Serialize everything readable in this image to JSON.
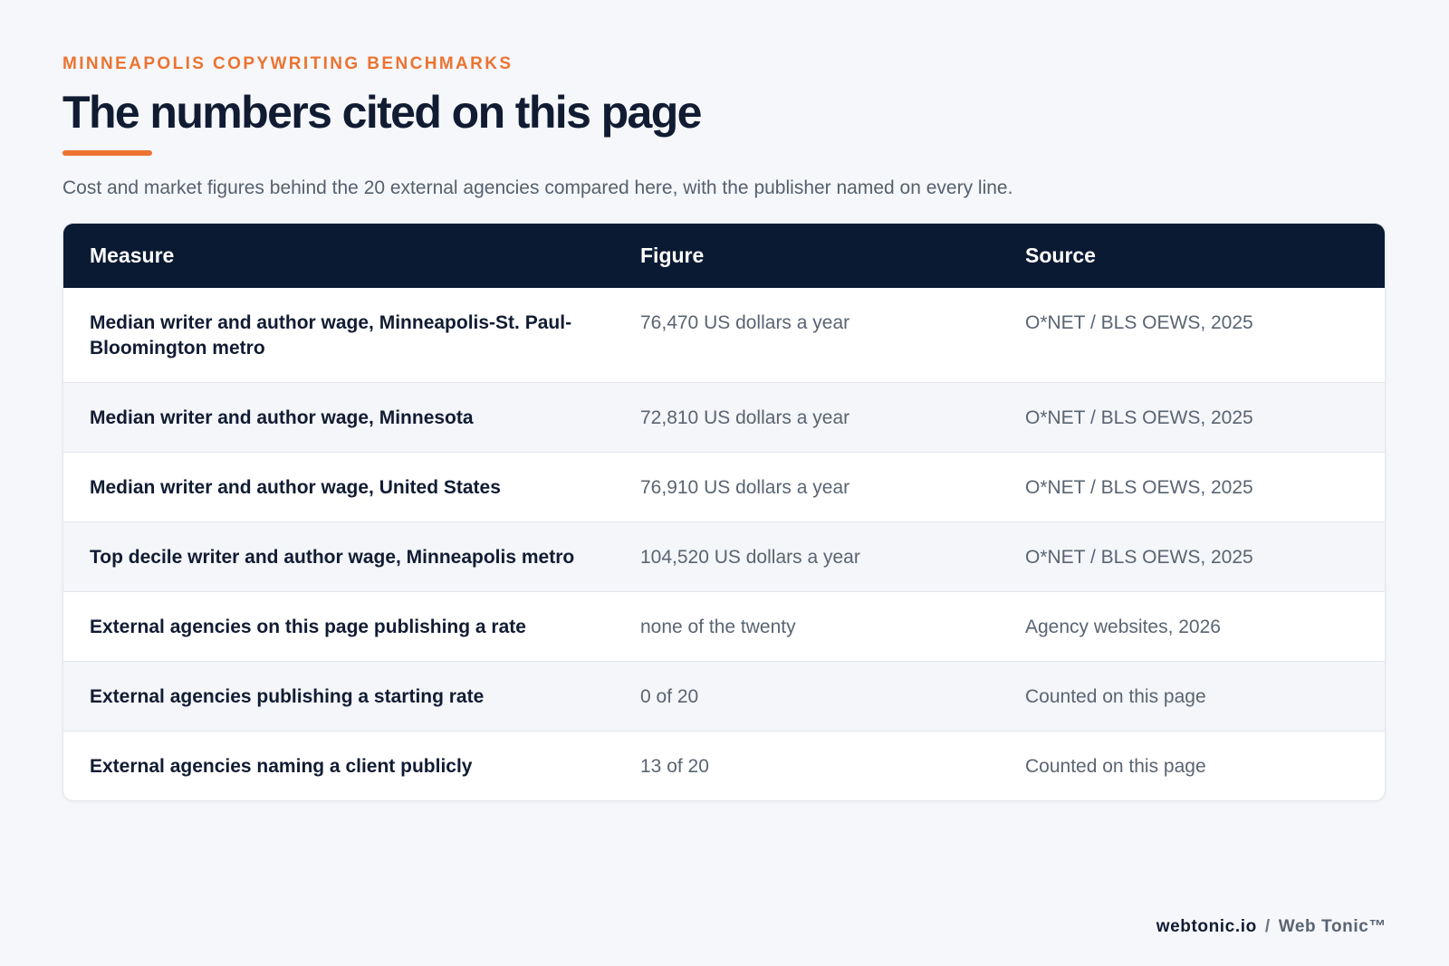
{
  "header": {
    "eyebrow": "MINNEAPOLIS COPYWRITING BENCHMARKS",
    "title": "The numbers cited on this page",
    "subtitle": "Cost and market figures behind the 20 external agencies compared here, with the publisher named on every line."
  },
  "table": {
    "columns": [
      "Measure",
      "Figure",
      "Source"
    ],
    "rows": [
      {
        "measure": "Median writer and author wage, Minneapolis-St. Paul-Bloomington metro",
        "figure": "76,470 US dollars a year",
        "source": "O*NET / BLS OEWS, 2025"
      },
      {
        "measure": "Median writer and author wage, Minnesota",
        "figure": "72,810 US dollars a year",
        "source": "O*NET / BLS OEWS, 2025"
      },
      {
        "measure": "Median writer and author wage, United States",
        "figure": "76,910 US dollars a year",
        "source": "O*NET / BLS OEWS, 2025"
      },
      {
        "measure": "Top decile writer and author wage, Minneapolis metro",
        "figure": "104,520 US dollars a year",
        "source": "O*NET / BLS OEWS, 2025"
      },
      {
        "measure": "External agencies on this page publishing a rate",
        "figure": "none of the twenty",
        "source": "Agency websites, 2026"
      },
      {
        "measure": "External agencies publishing a starting rate",
        "figure": "0 of 20",
        "source": "Counted on this page"
      },
      {
        "measure": "External agencies naming a client publicly",
        "figure": "13 of 20",
        "source": "Counted on this page"
      }
    ]
  },
  "footer": {
    "domain": "webtonic.io",
    "separator": "/",
    "brand": "Web Tonic™"
  },
  "colors": {
    "accent": "#ec7331",
    "header_bg": "#0b1a33",
    "page_bg": "#f5f7fa",
    "alt_row_bg": "#f4f6f9"
  }
}
